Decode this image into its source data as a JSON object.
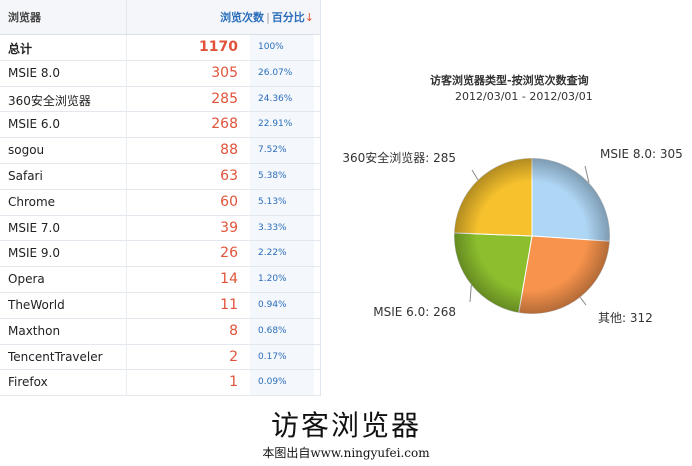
{
  "table": {
    "header_browser": "浏览器",
    "header_visits": "浏览次数",
    "header_divider": "|",
    "header_percent": "百分比",
    "sort_arrow": "↓",
    "rows": [
      {
        "name": "总计",
        "count": "1170",
        "pct": "100%"
      },
      {
        "name": "MSIE 8.0",
        "count": "305",
        "pct": "26.07%"
      },
      {
        "name": "360安全浏览器",
        "count": "285",
        "pct": "24.36%"
      },
      {
        "name": "MSIE 6.0",
        "count": "268",
        "pct": "22.91%"
      },
      {
        "name": "sogou",
        "count": "88",
        "pct": "7.52%"
      },
      {
        "name": "Safari",
        "count": "63",
        "pct": "5.38%"
      },
      {
        "name": "Chrome",
        "count": "60",
        "pct": "5.13%"
      },
      {
        "name": "MSIE 7.0",
        "count": "39",
        "pct": "3.33%"
      },
      {
        "name": "MSIE 9.0",
        "count": "26",
        "pct": "2.22%"
      },
      {
        "name": "Opera",
        "count": "14",
        "pct": "1.20%"
      },
      {
        "name": "TheWorld",
        "count": "11",
        "pct": "0.94%"
      },
      {
        "name": "Maxthon",
        "count": "8",
        "pct": "0.68%"
      },
      {
        "name": "TencentTraveler",
        "count": "2",
        "pct": "0.17%"
      },
      {
        "name": "Firefox",
        "count": "1",
        "pct": "0.09%"
      }
    ]
  },
  "chart_data": {
    "type": "pie",
    "title": "访客浏览器类型-按浏览次数查询",
    "subtitle": "2012/03/01 - 2012/03/01",
    "slices": [
      {
        "label": "MSIE 8.0: 305",
        "value": 305,
        "color": "#aed6f5"
      },
      {
        "label": "其他: 312",
        "value": 312,
        "color": "#f7934c"
      },
      {
        "label": "MSIE 6.0: 268",
        "value": 268,
        "color": "#8cbf2e"
      },
      {
        "label": "360安全浏览器: 285",
        "value": 285,
        "color": "#f6c12d"
      }
    ]
  },
  "caption": "访客浏览器",
  "credit": "本图出自www.ningyufei.com"
}
